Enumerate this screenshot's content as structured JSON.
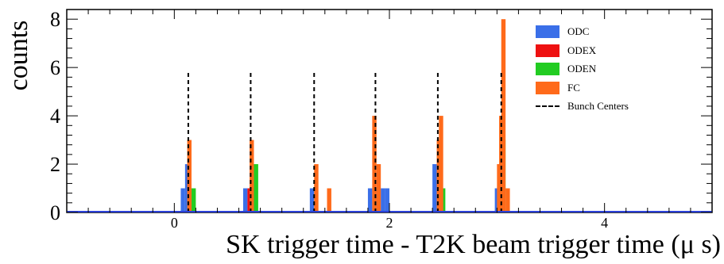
{
  "chart_data": {
    "type": "bar",
    "xlabel": "SK trigger time - T2K beam trigger time (μ s)",
    "ylabel": "counts",
    "xlim": [
      -1.0,
      5.0
    ],
    "ylim": [
      0,
      8.4
    ],
    "x_ticks": [
      "0",
      "2",
      "4"
    ],
    "y_ticks": [
      "0",
      "2",
      "4",
      "6",
      "8"
    ],
    "bin_width": 0.04,
    "legend_position": "top-right",
    "series": [
      {
        "name": "ODC",
        "color": "#3a6fe8",
        "bins": [
          [
            0.06,
            1
          ],
          [
            0.1,
            2
          ],
          [
            0.64,
            1
          ],
          [
            0.72,
            1
          ],
          [
            1.26,
            1
          ],
          [
            1.8,
            1
          ],
          [
            1.84,
            1
          ],
          [
            1.88,
            1
          ],
          [
            1.92,
            1
          ],
          [
            1.96,
            1
          ],
          [
            2.4,
            2
          ],
          [
            2.98,
            1
          ]
        ]
      },
      {
        "name": "ODEX",
        "color": "#ee1111",
        "bins": [
          [
            0.68,
            1
          ],
          [
            3.02,
            1
          ]
        ]
      },
      {
        "name": "ODEN",
        "color": "#22cc22",
        "bins": [
          [
            0.16,
            1
          ],
          [
            0.74,
            2
          ],
          [
            2.48,
            1
          ],
          [
            3.04,
            3
          ]
        ]
      },
      {
        "name": "FC",
        "color": "#ff6a1a",
        "bins": [
          [
            0.12,
            3
          ],
          [
            0.7,
            3
          ],
          [
            1.3,
            2
          ],
          [
            1.42,
            1
          ],
          [
            1.84,
            4
          ],
          [
            1.88,
            2
          ],
          [
            2.44,
            3
          ],
          [
            2.46,
            4
          ],
          [
            3.0,
            2
          ],
          [
            3.02,
            4
          ],
          [
            3.04,
            8
          ],
          [
            3.08,
            1
          ]
        ]
      }
    ],
    "bunch_centers": {
      "name": "Bunch Centers",
      "x": [
        0.13,
        0.71,
        1.3,
        1.87,
        2.45,
        3.04
      ],
      "y_top": 5.9
    }
  }
}
